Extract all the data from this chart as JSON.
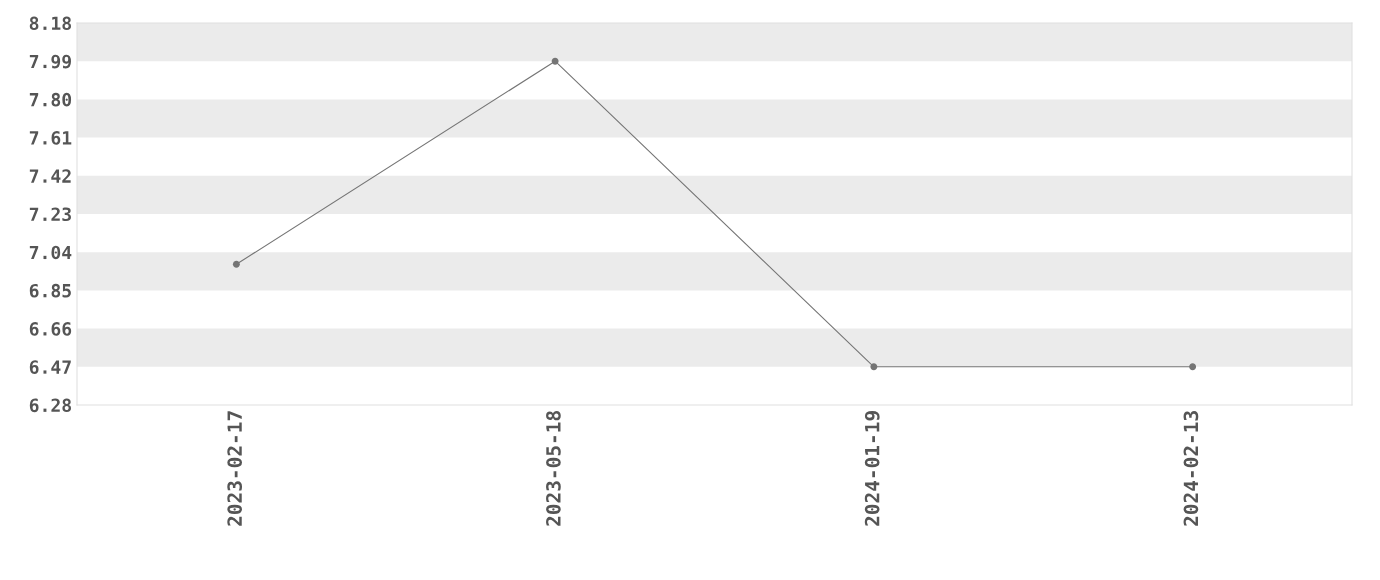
{
  "chart_data": {
    "type": "line",
    "categories": [
      "2023-02-17",
      "2023-05-18",
      "2024-01-19",
      "2024-02-13"
    ],
    "series": [
      {
        "color": "#757575",
        "values": [
          6.98,
          7.99,
          6.47,
          6.47
        ]
      }
    ],
    "ylim": [
      6.28,
      8.18
    ],
    "yticks": [
      6.28,
      6.47,
      6.66,
      6.85,
      7.04,
      7.23,
      7.42,
      7.61,
      {
        "value": 7.8,
        "label": "7.80"
      },
      7.99,
      8.18
    ],
    "bands": [
      {
        "axis": "y",
        "from": 6.47,
        "to": 6.66,
        "color": "#ebebeb"
      },
      {
        "axis": "y",
        "from": 6.85,
        "to": 7.04,
        "color": "#ebebeb"
      },
      {
        "axis": "y",
        "from": 7.23,
        "to": 7.42,
        "color": "#ebebeb"
      },
      {
        "axis": "y",
        "from": 7.61,
        "to": 7.8,
        "color": "#ebebeb"
      },
      {
        "axis": "y",
        "from": 7.99,
        "to": 8.18,
        "color": "#ebebeb"
      }
    ],
    "marker": "circle",
    "line_style": "solid"
  }
}
